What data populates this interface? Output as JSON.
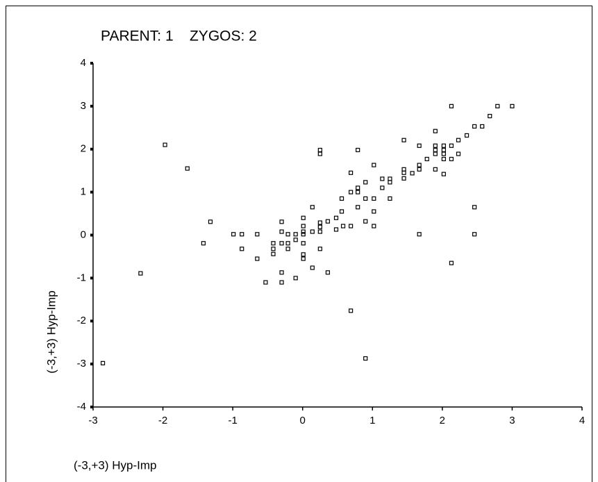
{
  "chart_data": {
    "type": "scatter",
    "title": "PARENT: 1    ZYGOS: 2",
    "xlabel": "(-3,+3) Hyp-Imp",
    "ylabel": "(-3,+3) Hyp-Imp",
    "xlim": [
      -3,
      4
    ],
    "ylim": [
      -4,
      4
    ],
    "xticks": [
      -3,
      -2,
      -1,
      0,
      1,
      2,
      3,
      4
    ],
    "yticks": [
      -4,
      -3,
      -2,
      -1,
      0,
      1,
      2,
      3,
      4
    ],
    "color": "#000000",
    "x": [
      -2.86,
      -2.32,
      -1.97,
      -1.65,
      -1.32,
      -1.42,
      -0.99,
      -0.87,
      -0.87,
      -0.65,
      -0.65,
      -0.53,
      -0.3,
      -0.3,
      -0.3,
      -0.3,
      -0.3,
      -0.42,
      -0.42,
      -0.42,
      -0.21,
      -0.21,
      -0.21,
      -0.1,
      -0.1,
      -0.1,
      0.01,
      0.01,
      0.01,
      0.01,
      0.01,
      0.01,
      0.01,
      0.14,
      0.14,
      0.14,
      0.25,
      0.25,
      0.25,
      0.25,
      0.25,
      0.25,
      0.36,
      0.36,
      0.48,
      0.48,
      0.56,
      0.56,
      0.58,
      0.69,
      0.69,
      0.69,
      0.69,
      0.79,
      0.79,
      0.79,
      0.79,
      0.9,
      0.9,
      0.9,
      0.9,
      1.02,
      1.02,
      1.02,
      1.02,
      1.14,
      1.14,
      1.25,
      1.25,
      1.25,
      1.45,
      1.45,
      1.45,
      1.45,
      1.57,
      1.67,
      1.67,
      1.67,
      1.67,
      1.78,
      1.9,
      1.9,
      1.9,
      1.9,
      1.9,
      2.02,
      2.02,
      2.02,
      2.02,
      2.02,
      2.13,
      2.13,
      2.13,
      2.13,
      2.23,
      2.23,
      2.35,
      2.46,
      2.57,
      2.68,
      2.79,
      3.0,
      2.46,
      2.46
    ],
    "values": [
      -2.98,
      -0.89,
      2.1,
      1.55,
      0.31,
      -0.19,
      0.02,
      0.02,
      -0.32,
      0.02,
      -0.55,
      -1.1,
      -1.1,
      -0.87,
      0.31,
      0.08,
      -0.19,
      -0.19,
      -0.32,
      -0.44,
      0.02,
      -0.19,
      -0.32,
      0.02,
      -0.11,
      -1.0,
      0.4,
      0.21,
      0.08,
      0.02,
      -0.19,
      -0.45,
      -0.55,
      0.65,
      0.08,
      -0.76,
      0.29,
      0.19,
      0.08,
      -0.32,
      1.98,
      1.89,
      0.32,
      -0.87,
      0.4,
      0.13,
      0.55,
      0.85,
      0.21,
      0.21,
      1.0,
      1.45,
      -1.76,
      1.0,
      1.1,
      0.65,
      1.98,
      1.23,
      0.85,
      0.32,
      -2.87,
      1.63,
      0.85,
      0.55,
      0.21,
      1.31,
      1.1,
      1.31,
      1.23,
      0.85,
      2.21,
      1.53,
      1.45,
      1.32,
      1.44,
      1.63,
      1.53,
      2.08,
      0.02,
      1.77,
      2.42,
      2.08,
      1.98,
      1.89,
      1.53,
      2.08,
      1.98,
      1.89,
      1.77,
      1.42,
      2.08,
      1.77,
      3.0,
      -0.65,
      2.21,
      1.89,
      2.32,
      2.53,
      2.53,
      2.77,
      3.0,
      3.0,
      0.65,
      0.02
    ]
  }
}
